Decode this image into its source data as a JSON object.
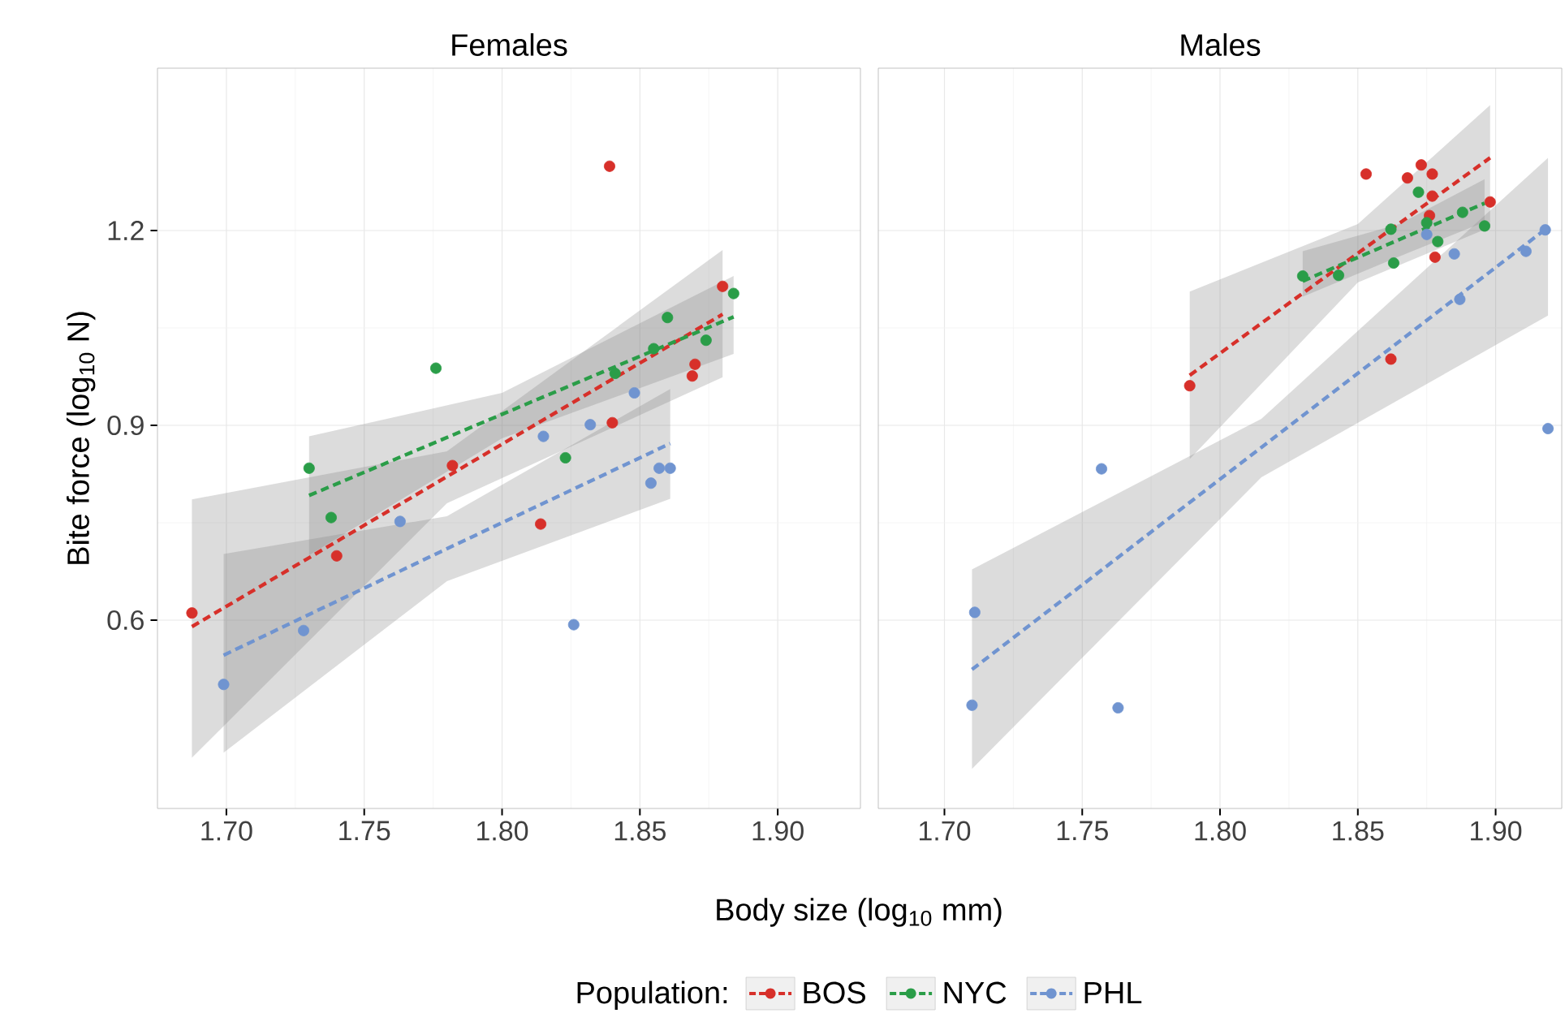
{
  "chart_data": [
    {
      "type": "scatter",
      "title": "Females",
      "xlabel": "Body size (log$_{10}$ mm)",
      "ylabel": "Bite force (log$_{10}$ N)",
      "legend_title": "Population:",
      "legend": "bottom",
      "grid": true,
      "xlim": [
        1.675,
        1.93
      ],
      "xticks": [
        {
          "value": 1.7,
          "label": "1.70"
        },
        {
          "value": 1.75,
          "label": "1.75"
        },
        {
          "value": 1.8,
          "label": "1.80"
        },
        {
          "value": 1.85,
          "label": "1.85"
        },
        {
          "value": 1.9,
          "label": "1.90"
        }
      ],
      "ylim": [
        0.31,
        1.45
      ],
      "yticks": [
        0.6,
        0.9,
        1.2
      ],
      "series": [
        {
          "type": "line",
          "color": "#d7302a",
          "marker": "none",
          "line_style": "dashed",
          "x": [
            1.6875,
            1.78,
            1.88
          ],
          "values": [
            0.59,
            0.821,
            1.071
          ],
          "lower": [
            0.388,
            0.78,
            0.974
          ],
          "upper": [
            0.786,
            0.86,
            1.17
          ]
        },
        {
          "type": "line",
          "color": "#2a9d48",
          "marker": "none",
          "line_style": "dashed",
          "x": [
            1.73,
            1.8,
            1.884
          ],
          "values": [
            0.792,
            0.917,
            1.067
          ],
          "lower": [
            0.7,
            0.88,
            1.01
          ],
          "upper": [
            0.883,
            0.95,
            1.13
          ]
        },
        {
          "type": "line",
          "color": "#7094d0",
          "marker": "none",
          "line_style": "dashed",
          "x": [
            1.699,
            1.78,
            1.861
          ],
          "values": [
            0.546,
            0.71,
            0.872
          ],
          "lower": [
            0.396,
            0.66,
            0.787
          ],
          "upper": [
            0.702,
            0.76,
            0.956
          ]
        },
        {
          "name": "BOS",
          "color": "#d7302a",
          "marker": "circle",
          "x": [
            1.6875,
            1.839,
            1.88,
            1.87,
            1.869,
            1.84,
            1.782,
            1.74,
            1.814
          ],
          "values": [
            0.611,
            1.299,
            1.114,
            0.994,
            0.976,
            0.904,
            0.838,
            0.699,
            0.748
          ]
        },
        {
          "name": "NYC",
          "color": "#2a9d48",
          "marker": "circle",
          "x": [
            1.73,
            1.738,
            1.776,
            1.823,
            1.841,
            1.855,
            1.86,
            1.874,
            1.884
          ],
          "values": [
            0.834,
            0.758,
            0.988,
            0.85,
            0.98,
            1.018,
            1.066,
            1.031,
            1.103
          ]
        },
        {
          "name": "PHL",
          "color": "#7094d0",
          "marker": "circle",
          "x": [
            1.699,
            1.728,
            1.763,
            1.815,
            1.826,
            1.832,
            1.848,
            1.854,
            1.857,
            1.861
          ],
          "values": [
            0.501,
            0.584,
            0.752,
            0.883,
            0.593,
            0.901,
            0.95,
            0.811,
            0.834,
            0.834
          ]
        }
      ]
    },
    {
      "type": "scatter",
      "title": "Males",
      "grid": true,
      "tick_labels": "x",
      "xlim": [
        1.676,
        1.924
      ],
      "xticks": [
        {
          "value": 1.7,
          "label": "1.70"
        },
        {
          "value": 1.75,
          "label": "1.75"
        },
        {
          "value": 1.8,
          "label": "1.80"
        },
        {
          "value": 1.85,
          "label": "1.85"
        },
        {
          "value": 1.9,
          "label": "1.90"
        }
      ],
      "ylim": [
        0.31,
        1.45
      ],
      "yticks": [
        0.6,
        0.9,
        1.2
      ],
      "series": [
        {
          "type": "line",
          "color": "#d7302a",
          "marker": "none",
          "line_style": "dashed",
          "x": [
            1.789,
            1.85,
            1.898
          ],
          "values": [
            0.977,
            1.165,
            1.312
          ],
          "lower": [
            0.848,
            1.12,
            1.205
          ],
          "upper": [
            1.106,
            1.21,
            1.393
          ]
        },
        {
          "type": "line",
          "color": "#2a9d48",
          "marker": "none",
          "line_style": "dashed",
          "x": [
            1.83,
            1.865,
            1.896
          ],
          "values": [
            1.122,
            1.186,
            1.242
          ],
          "lower": [
            1.098,
            1.16,
            1.213
          ],
          "upper": [
            1.168,
            1.21,
            1.279
          ]
        },
        {
          "type": "line",
          "color": "#7094d0",
          "marker": "none",
          "line_style": "dashed",
          "x": [
            1.71,
            1.815,
            1.919
          ],
          "values": [
            0.524,
            0.866,
            1.205
          ],
          "lower": [
            0.371,
            0.82,
            1.069
          ],
          "upper": [
            0.678,
            0.91,
            1.312
          ]
        },
        {
          "color": "#d7302a",
          "marker": "circle",
          "x": [
            1.789,
            1.853,
            1.868,
            1.873,
            1.877,
            1.877,
            1.876,
            1.878,
            1.898,
            1.862
          ],
          "values": [
            0.961,
            1.287,
            1.281,
            1.301,
            1.287,
            1.253,
            1.223,
            1.159,
            1.244,
            1.002
          ]
        },
        {
          "color": "#2a9d48",
          "marker": "circle",
          "x": [
            1.83,
            1.843,
            1.863,
            1.862,
            1.872,
            1.879,
            1.888,
            1.896,
            1.875
          ],
          "values": [
            1.13,
            1.131,
            1.15,
            1.202,
            1.259,
            1.183,
            1.228,
            1.207,
            1.212
          ]
        },
        {
          "color": "#7094d0",
          "marker": "circle",
          "x": [
            1.711,
            1.71,
            1.757,
            1.763,
            1.875,
            1.885,
            1.887,
            1.911,
            1.918,
            1.919
          ],
          "values": [
            0.612,
            0.469,
            0.833,
            0.465,
            1.194,
            1.164,
            1.094,
            1.168,
            1.201,
            0.895
          ]
        }
      ]
    }
  ]
}
